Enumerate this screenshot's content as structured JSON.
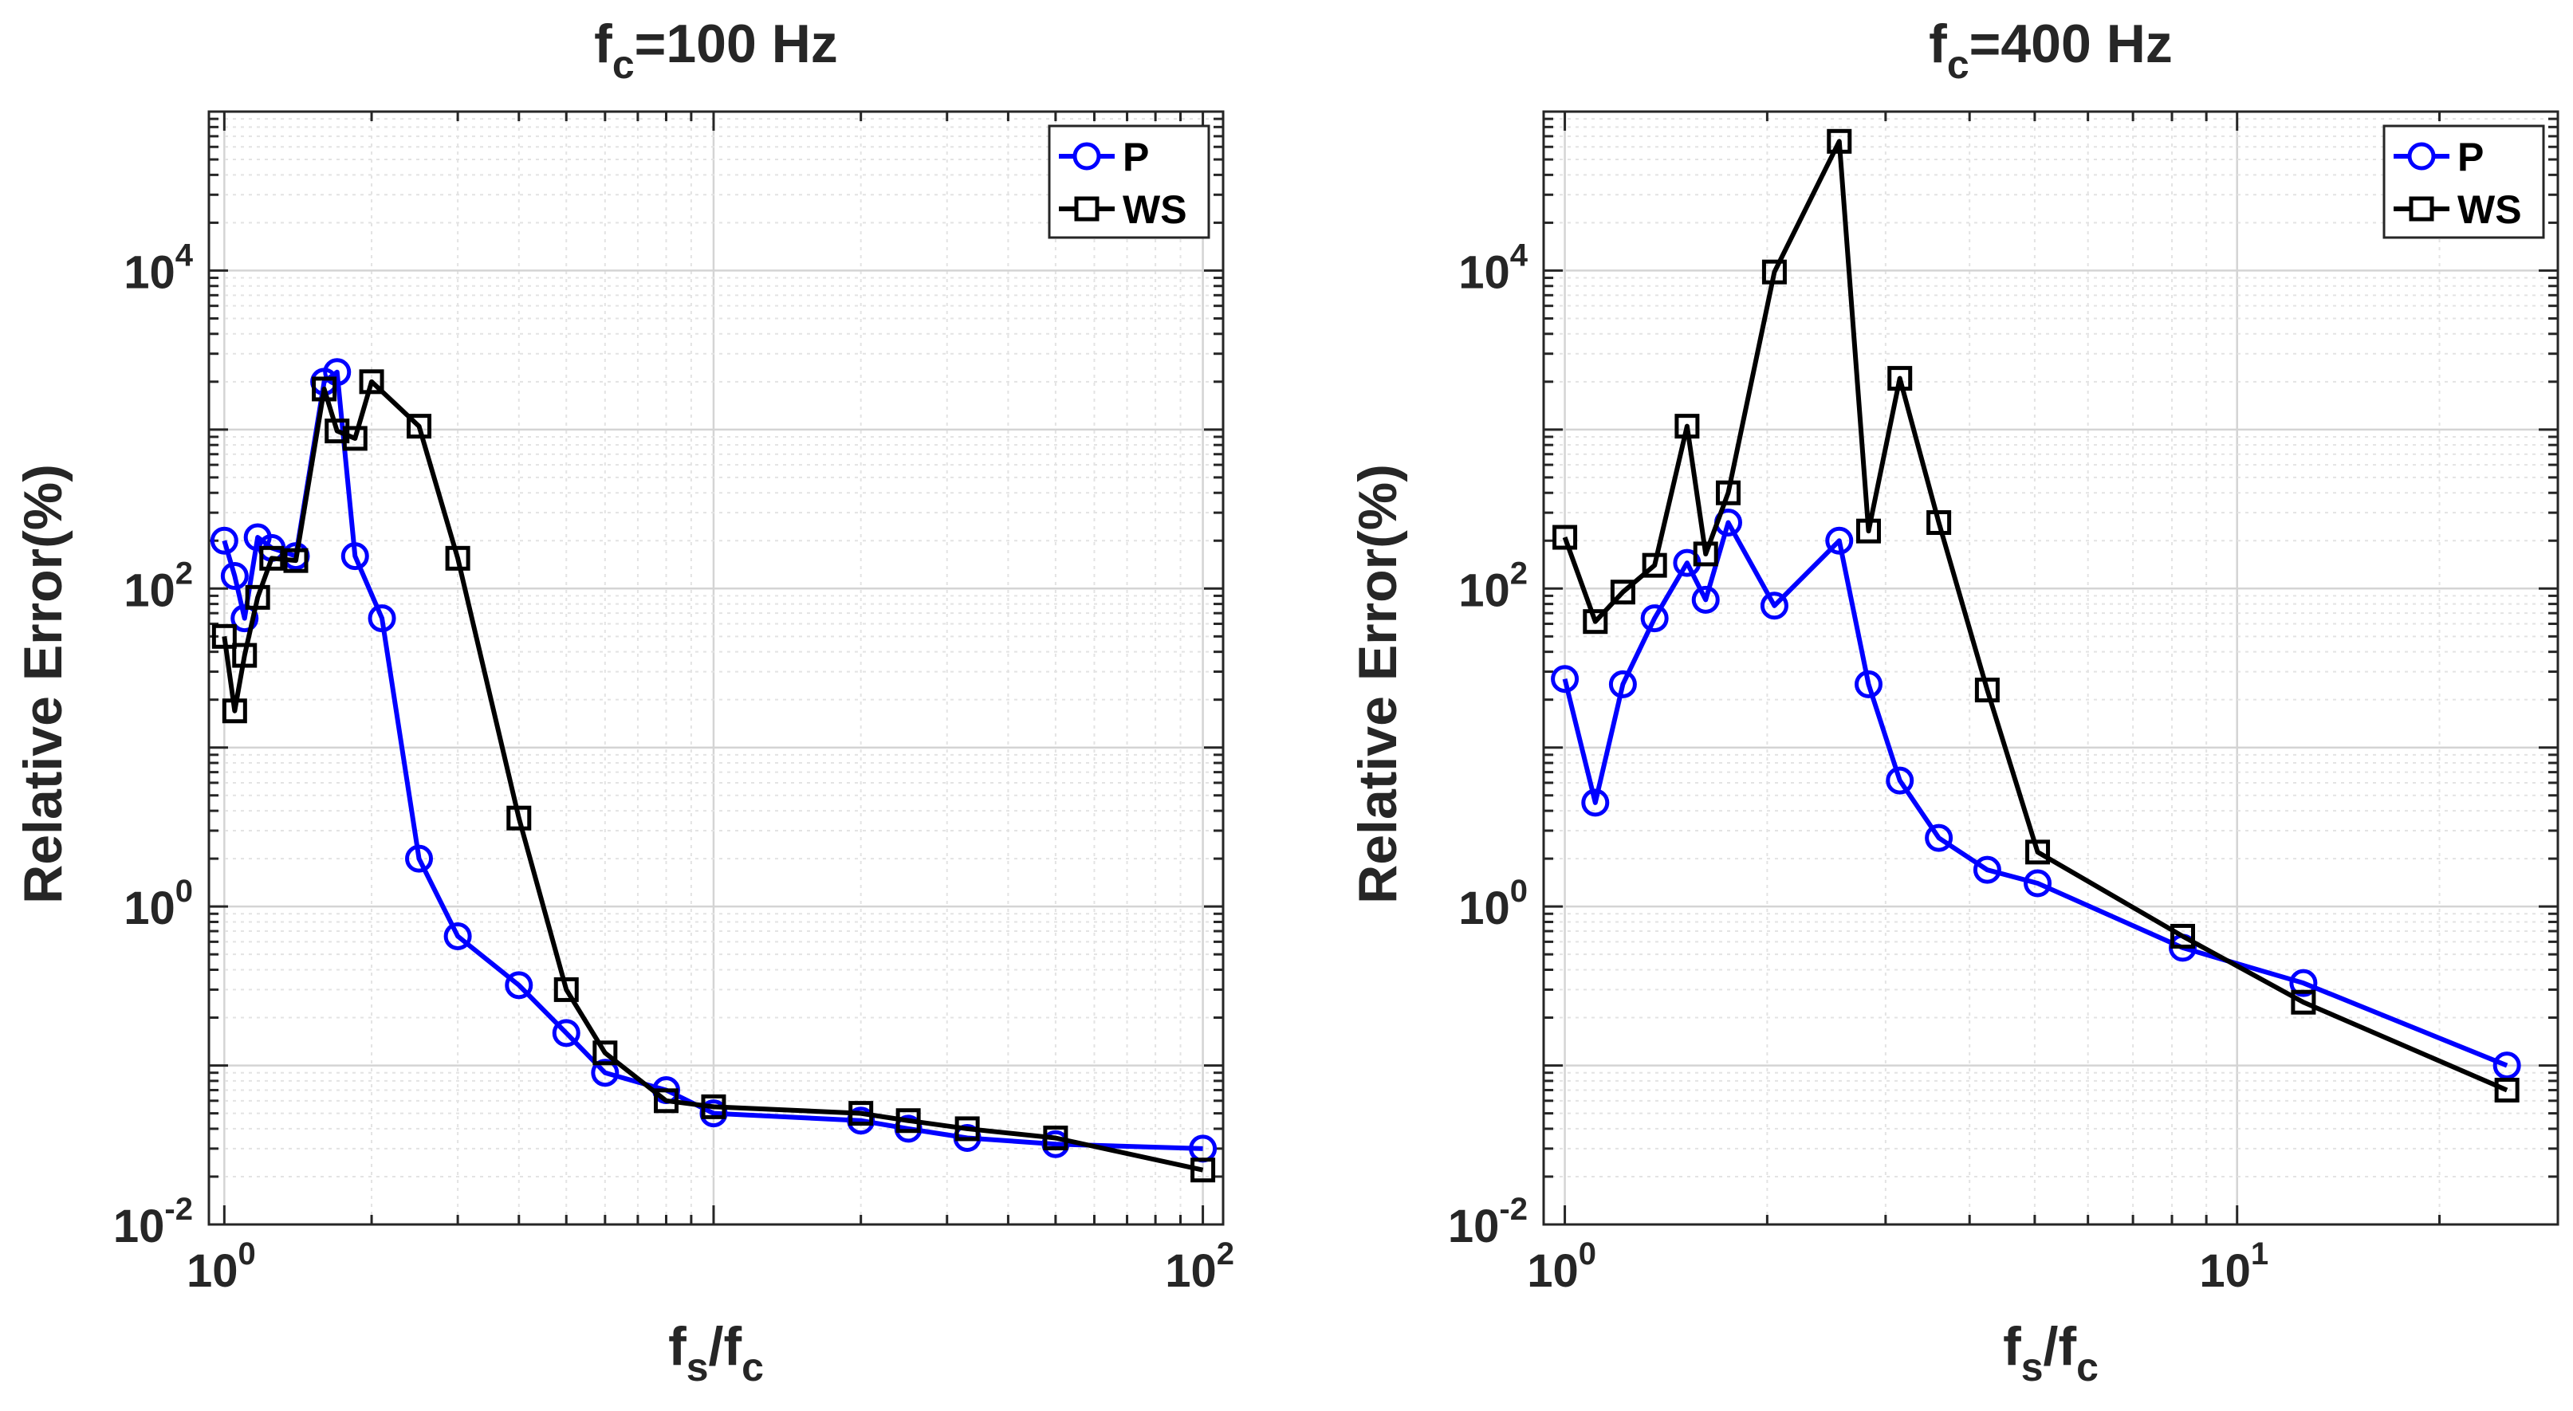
{
  "chart_data": [
    {
      "type": "line",
      "scale": "log-log",
      "title": {
        "base": "f",
        "sub": "c",
        "rest": "=100 Hz"
      },
      "xlabel": {
        "a": "f",
        "a_sub": "s",
        "slash": "/",
        "b": "f",
        "b_sub": "c"
      },
      "ylabel": "Relative Error(%)",
      "xlim": [
        0.93,
        110
      ],
      "ylim": [
        0.01,
        100000
      ],
      "xticks": [
        {
          "value": 1,
          "base": "10",
          "exp": "0"
        },
        {
          "value": 100,
          "base": "10",
          "exp": "2"
        }
      ],
      "yticks": [
        {
          "value": 0.01,
          "base": "10",
          "exp": "-2"
        },
        {
          "value": 1,
          "base": "10",
          "exp": "0"
        },
        {
          "value": 100,
          "base": "10",
          "exp": "2"
        },
        {
          "value": 10000,
          "base": "10",
          "exp": "4"
        }
      ],
      "grid": true,
      "legend": "top-right",
      "series": [
        {
          "name": "P",
          "color": "#0000ff",
          "marker": "circle",
          "x": [
            1.0,
            1.05,
            1.1,
            1.17,
            1.25,
            1.4,
            1.6,
            1.7,
            1.85,
            2.1,
            2.5,
            3.0,
            4.0,
            5.0,
            6.0,
            8.0,
            10.0,
            20.0,
            25.0,
            33.0,
            50.0,
            100.0
          ],
          "y": [
            200,
            120,
            65,
            210,
            180,
            160,
            2000,
            2300,
            160,
            65,
            2.0,
            0.65,
            0.32,
            0.16,
            0.09,
            0.07,
            0.05,
            0.045,
            0.04,
            0.035,
            0.032,
            0.03
          ]
        },
        {
          "name": "WS",
          "color": "#000000",
          "marker": "square",
          "x": [
            1.0,
            1.05,
            1.1,
            1.17,
            1.25,
            1.4,
            1.6,
            1.7,
            1.85,
            2.0,
            2.5,
            3.0,
            4.0,
            5.0,
            6.0,
            8.0,
            10.0,
            20.0,
            25.0,
            33.0,
            50.0,
            100.0
          ],
          "y": [
            50,
            17,
            38,
            88,
            155,
            150,
            1800,
            980,
            880,
            2000,
            1050,
            155,
            3.6,
            0.3,
            0.12,
            0.06,
            0.055,
            0.05,
            0.045,
            0.04,
            0.035,
            0.022
          ]
        }
      ]
    },
    {
      "type": "line",
      "scale": "log-log",
      "title": {
        "base": "f",
        "sub": "c",
        "rest": "=400 Hz"
      },
      "xlabel": {
        "a": "f",
        "a_sub": "s",
        "slash": "/",
        "b": "f",
        "b_sub": "c"
      },
      "ylabel": "Relative Error(%)",
      "xlim": [
        0.93,
        30
      ],
      "ylim": [
        0.01,
        100000
      ],
      "xticks": [
        {
          "value": 1,
          "base": "10",
          "exp": "0"
        },
        {
          "value": 10,
          "base": "10",
          "exp": "1"
        }
      ],
      "yticks": [
        {
          "value": 0.01,
          "base": "10",
          "exp": "-2"
        },
        {
          "value": 1,
          "base": "10",
          "exp": "0"
        },
        {
          "value": 100,
          "base": "10",
          "exp": "2"
        },
        {
          "value": 10000,
          "base": "10",
          "exp": "4"
        }
      ],
      "grid": true,
      "legend": "top-right",
      "series": [
        {
          "name": "P",
          "color": "#0000ff",
          "marker": "circle",
          "x": [
            1.0,
            1.11,
            1.25,
            1.4,
            1.55,
            1.66,
            1.75,
            2.0,
            2.5,
            2.8,
            3.2,
            3.6,
            4.2,
            5.0,
            8.0,
            12.5,
            25.0
          ],
          "y": [
            27,
            4.5,
            25,
            65,
            145,
            85,
            260,
            78,
            200,
            25,
            6.2,
            2.7,
            1.7,
            1.4,
            0.55,
            0.33,
            0.1
          ],
          "x_plot": [
            1.0,
            1.11,
            1.22,
            1.36,
            1.52,
            1.62,
            1.75,
            2.05,
            2.56,
            2.83,
            3.15,
            3.6,
            4.25,
            5.05,
            8.3,
            12.55,
            25.2
          ]
        },
        {
          "name": "WS",
          "color": "#000000",
          "marker": "square",
          "x": [
            1.0,
            1.11,
            1.25,
            1.4,
            1.55,
            1.66,
            1.75,
            2.0,
            2.5,
            2.8,
            3.2,
            3.6,
            4.2,
            5.0,
            8.0,
            12.5,
            25.0
          ],
          "y": [
            210,
            62,
            95,
            140,
            1050,
            165,
            400,
            9800,
            65000,
            230,
            2100,
            260,
            23,
            2.2,
            0.65,
            0.25,
            0.07
          ],
          "x_plot": [
            1.0,
            1.11,
            1.22,
            1.36,
            1.52,
            1.62,
            1.75,
            2.05,
            2.56,
            2.83,
            3.15,
            3.6,
            4.25,
            5.05,
            8.3,
            12.55,
            25.2
          ]
        }
      ]
    }
  ]
}
